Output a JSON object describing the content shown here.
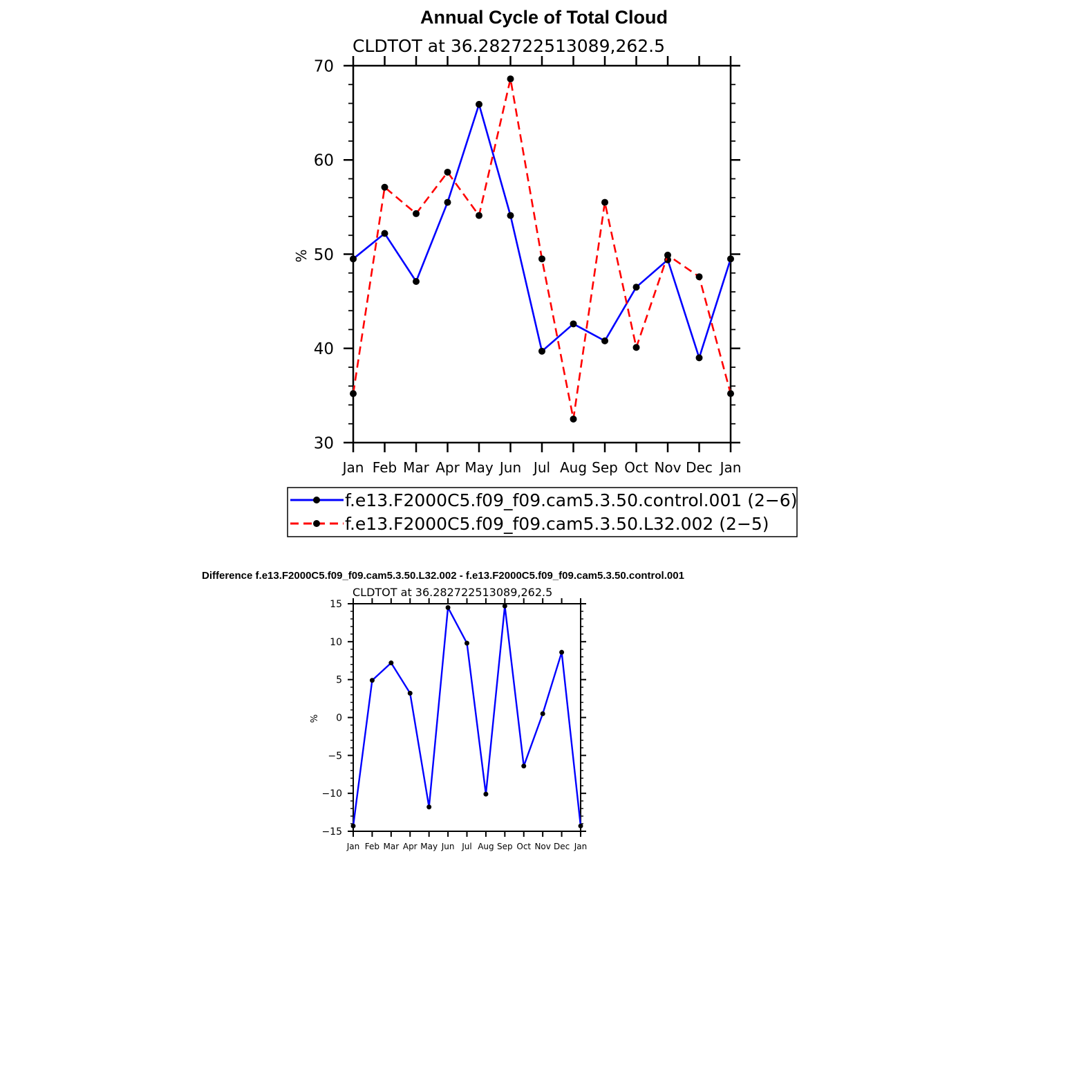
{
  "chart_data": [
    {
      "type": "line",
      "title": "Annual Cycle of Total Cloud",
      "subtitle": "CLDTOT at 36.282722513089,262.5",
      "xlabel": "",
      "ylabel": "%",
      "categories": [
        "Jan",
        "Feb",
        "Mar",
        "Apr",
        "May",
        "Jun",
        "Jul",
        "Aug",
        "Sep",
        "Oct",
        "Nov",
        "Dec",
        "Jan"
      ],
      "ylim": [
        30,
        70
      ],
      "yticks": [
        "30",
        "40",
        "50",
        "60",
        "70"
      ],
      "series": [
        {
          "name": "f.e13.F2000C5.f09_f09.cam5.3.50.control.001 (2−6)",
          "color": "#0000ff",
          "dash": "solid",
          "values": [
            49.5,
            52.2,
            47.1,
            55.5,
            65.9,
            54.1,
            39.7,
            42.6,
            40.8,
            46.5,
            49.4,
            39.0,
            49.5
          ]
        },
        {
          "name": "f.e13.F2000C5.f09_f09.cam5.3.50.L32.002 (2−5)",
          "color": "#ff0000",
          "dash": "dashed",
          "values": [
            35.2,
            57.1,
            54.3,
            58.7,
            54.1,
            68.6,
            49.5,
            32.5,
            55.5,
            40.1,
            49.9,
            47.6,
            35.2
          ]
        }
      ],
      "legend": "below"
    },
    {
      "type": "line",
      "title": "Difference f.e13.F2000C5.f09_f09.cam5.3.50.L32.002 - f.e13.F2000C5.f09_f09.cam5.3.50.control.001",
      "subtitle": "CLDTOT at 36.282722513089,262.5",
      "xlabel": "",
      "ylabel": "%",
      "categories": [
        "Jan",
        "Feb",
        "Mar",
        "Apr",
        "May",
        "Jun",
        "Jul",
        "Aug",
        "Sep",
        "Oct",
        "Nov",
        "Dec",
        "Jan"
      ],
      "ylim": [
        -15,
        15
      ],
      "yticks": [
        "−15",
        "−10",
        "−5",
        "0",
        "5",
        "10",
        "15"
      ],
      "series": [
        {
          "color": "#0000ff",
          "dash": "solid",
          "values": [
            -14.3,
            4.9,
            7.2,
            3.2,
            -11.8,
            14.5,
            9.8,
            -10.1,
            14.7,
            -6.4,
            0.5,
            8.6,
            -14.3
          ]
        }
      ]
    }
  ]
}
